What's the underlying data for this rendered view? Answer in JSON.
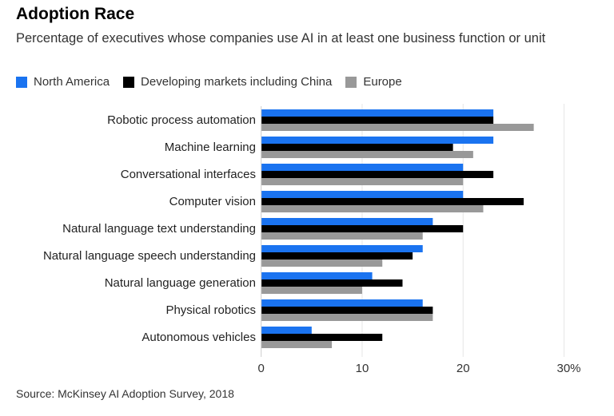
{
  "chart_data": {
    "type": "bar",
    "orientation": "horizontal",
    "title": "Adoption Race",
    "subtitle": "Percentage of executives whose companies use AI in at least one business function or unit",
    "categories": [
      "Robotic process automation",
      "Machine learning",
      "Conversational interfaces",
      "Computer vision",
      "Natural language text understanding",
      "Natural language speech understanding",
      "Natural language generation",
      "Physical robotics",
      "Autonomous vehicles"
    ],
    "series": [
      {
        "name": "North America",
        "color": "#1a73f0",
        "values": [
          23,
          23,
          20,
          20,
          17,
          16,
          11,
          16,
          5
        ]
      },
      {
        "name": "Developing markets including China",
        "color": "#000000",
        "values": [
          23,
          19,
          23,
          26,
          20,
          15,
          14,
          17,
          12
        ]
      },
      {
        "name": "Europe",
        "color": "#999999",
        "values": [
          27,
          21,
          20,
          22,
          16,
          12,
          10,
          17,
          7
        ]
      }
    ],
    "xlim": [
      0,
      30
    ],
    "xticks": [
      {
        "value": 0,
        "label": "0"
      },
      {
        "value": 10,
        "label": "10"
      },
      {
        "value": 20,
        "label": "20"
      },
      {
        "value": 30,
        "label": "30%"
      }
    ],
    "grid": true,
    "legend_position": "top-left",
    "source": "Source: McKinsey AI Adoption Survey, 2018"
  }
}
